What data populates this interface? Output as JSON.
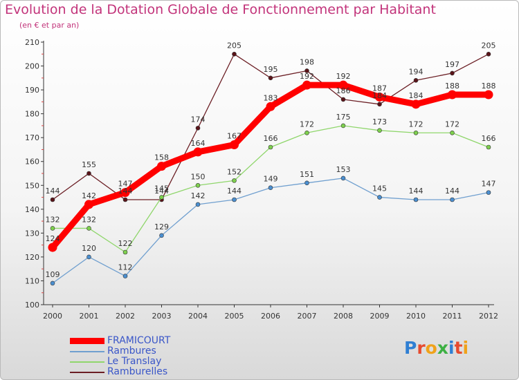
{
  "title": "Evolution de la Dotation Globale de Fonctionnement par Habitant",
  "subtitle": "(en € et par an)",
  "logo": {
    "text": "Proxiti",
    "colors": [
      "#2f7fd3",
      "#e64a2e",
      "#f0a21a",
      "#3cb043",
      "#2f7fd3",
      "#e64a2e",
      "#f0a21a"
    ]
  },
  "chart_data": {
    "type": "line",
    "title": "Evolution de la Dotation Globale de Fonctionnement par Habitant",
    "subtitle": "(en € et par an)",
    "xlabel": "",
    "ylabel": "",
    "x": [
      "2000",
      "2001",
      "2002",
      "2003",
      "2004",
      "2005",
      "2006",
      "2007",
      "2008",
      "2009",
      "2010",
      "2011",
      "2012"
    ],
    "ylim": [
      100,
      210
    ],
    "yticks": [
      100,
      110,
      120,
      130,
      140,
      150,
      160,
      170,
      180,
      190,
      200,
      210
    ],
    "grid": false,
    "legend_position": "bottom-left",
    "series": [
      {
        "name": "Ramburelles",
        "color": "#6b1e24",
        "marker_fill": "#5a1419",
        "values": [
          144,
          155,
          144,
          144,
          174,
          205,
          195,
          198,
          186,
          184,
          194,
          197,
          205
        ],
        "labels": [
          "144",
          "155",
          "144",
          "144",
          "174",
          "205",
          "195",
          "198",
          "186",
          "184",
          "194",
          "197",
          "205"
        ]
      },
      {
        "name": "Le Translay",
        "color": "#8fd66b",
        "marker_fill": "#7ed04e",
        "values": [
          132,
          132,
          122,
          145,
          150,
          152,
          166,
          172,
          175,
          173,
          172,
          172,
          166
        ],
        "labels": [
          "132",
          "132",
          "122",
          "145",
          "150",
          "152",
          "166",
          "172",
          "175",
          "173",
          "172",
          "172",
          "166"
        ]
      },
      {
        "name": "Rambures",
        "color": "#6f9fcf",
        "marker_fill": "#4b8fd0",
        "values": [
          109,
          120,
          112,
          129,
          142,
          144,
          149,
          151,
          153,
          145,
          144,
          144,
          147
        ],
        "labels": [
          "109",
          "120",
          "112",
          "129",
          "142",
          "144",
          "149",
          "151",
          "153",
          "145",
          "144",
          "144",
          "147"
        ]
      },
      {
        "name": "FRAMICOURT",
        "color": "#ff0000",
        "marker_fill": "#ff0000",
        "values": [
          124,
          142,
          147,
          158,
          164,
          167,
          183,
          192,
          192,
          187,
          184,
          188,
          188
        ],
        "labels": [
          "124",
          "142",
          "147",
          "158",
          "164",
          "167",
          "183",
          "192",
          "192",
          "187",
          "184",
          "188",
          "188"
        ]
      }
    ],
    "legend": [
      "FRAMICOURT",
      "Rambures",
      "Le Translay",
      "Ramburelles"
    ]
  }
}
